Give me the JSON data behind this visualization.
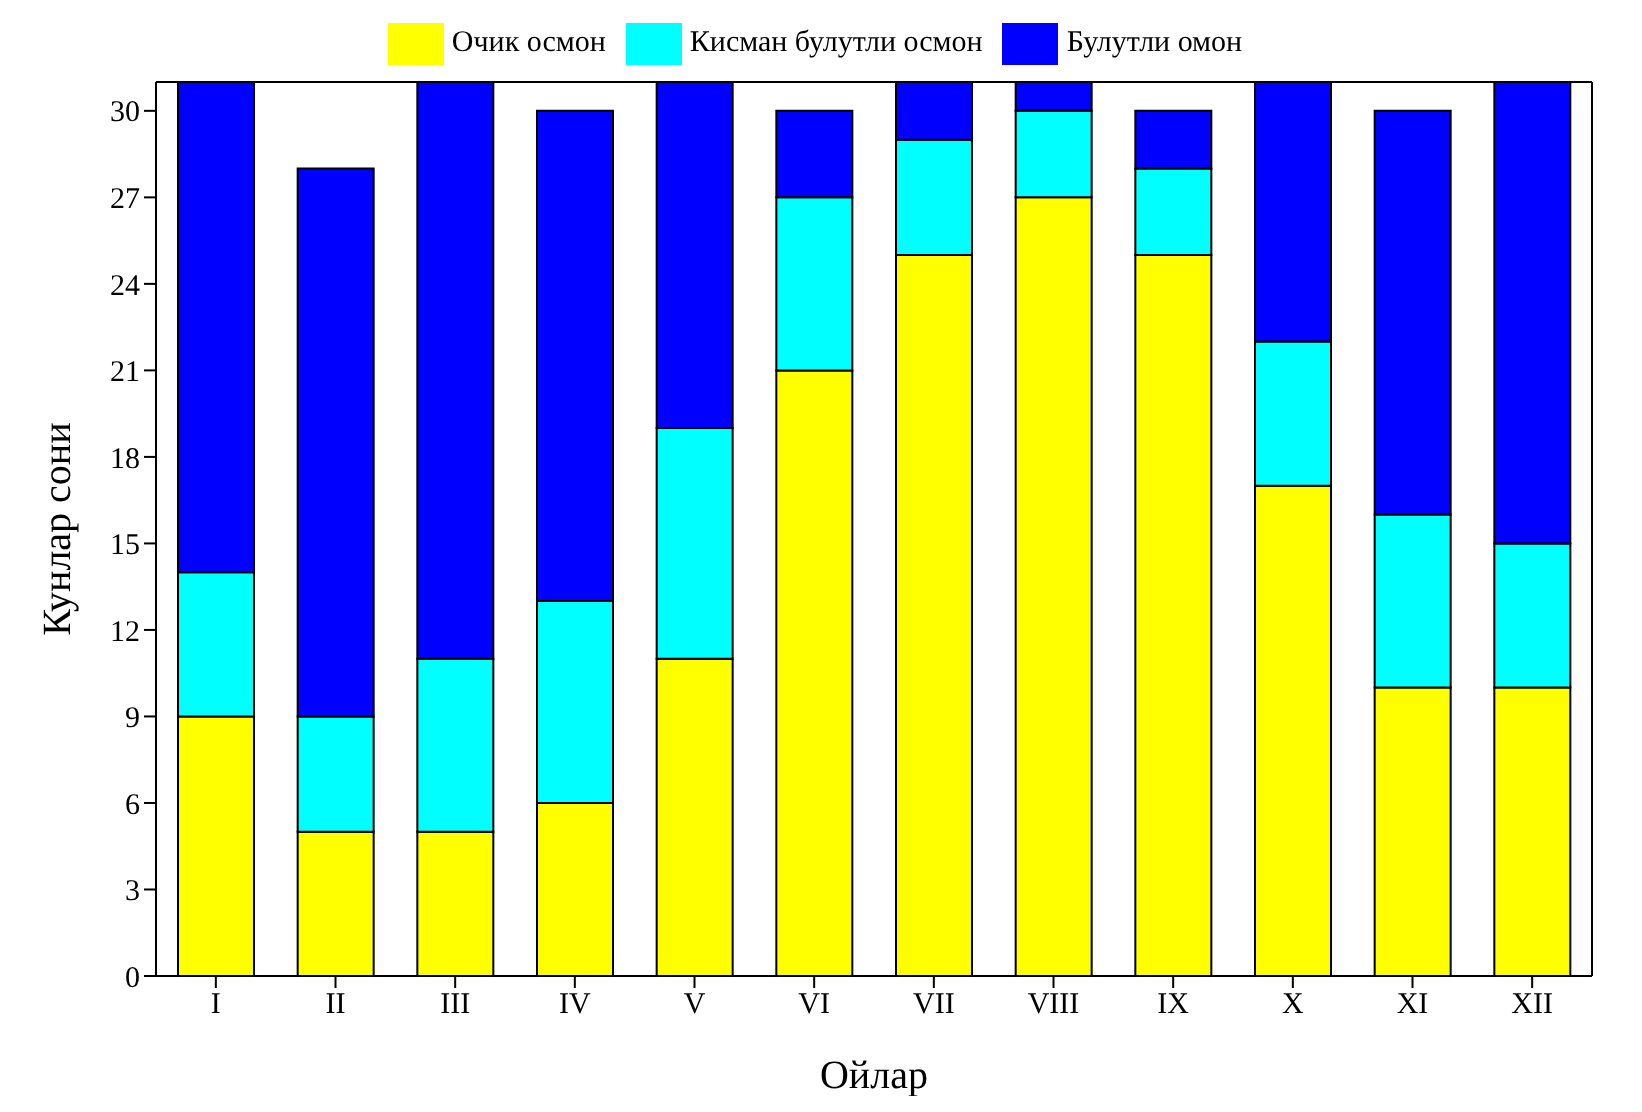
{
  "chart_data": {
    "type": "bar",
    "stacked": true,
    "xlabel": "Ойлар",
    "ylabel": "Кунлар сони",
    "categories": [
      "I",
      "II",
      "III",
      "IV",
      "V",
      "VI",
      "VII",
      "VIII",
      "IX",
      "X",
      "XI",
      "XII"
    ],
    "series": [
      {
        "name": "Очик осмон",
        "color": "#ffff00",
        "values": [
          9,
          5,
          5,
          6,
          11,
          21,
          25,
          27,
          25,
          17,
          10,
          10
        ]
      },
      {
        "name": "Кисман булутли осмон",
        "color": "#00ffff",
        "values": [
          5,
          4,
          6,
          7,
          8,
          6,
          4,
          3,
          3,
          5,
          6,
          5
        ]
      },
      {
        "name": "Булутли омон",
        "color": "#0000ff",
        "values": [
          17,
          19,
          20,
          17,
          12,
          3,
          2,
          1,
          2,
          9,
          14,
          16
        ]
      }
    ],
    "ylim": [
      0,
      31
    ],
    "yticks": [
      0,
      3,
      6,
      9,
      12,
      15,
      18,
      21,
      24,
      27,
      30
    ],
    "legend": "top"
  }
}
